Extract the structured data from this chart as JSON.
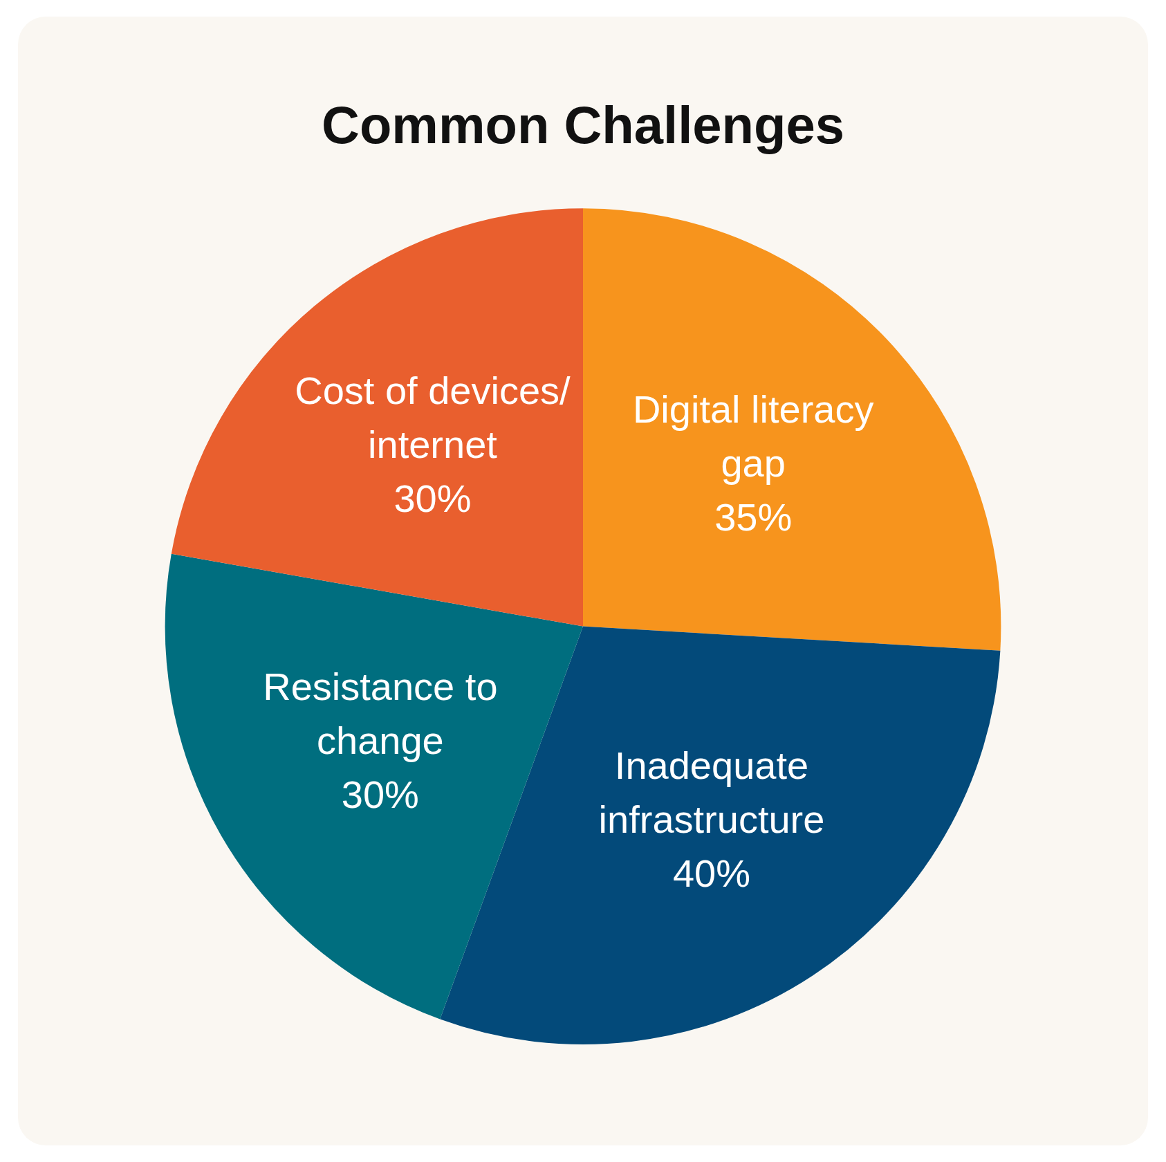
{
  "chart_data": {
    "type": "pie",
    "title": "Common Challenges",
    "categories": [
      "Digital literacy gap",
      "Inadequate infrastructure",
      "Resistance to change",
      "Cost of devices/internet"
    ],
    "values": [
      35,
      40,
      30,
      30
    ],
    "value_labels": [
      "35%",
      "40%",
      "30%",
      "30%"
    ],
    "colors": [
      "#f7941d",
      "#034a7a",
      "#006e7f",
      "#e95f2e"
    ],
    "legend": false
  }
}
